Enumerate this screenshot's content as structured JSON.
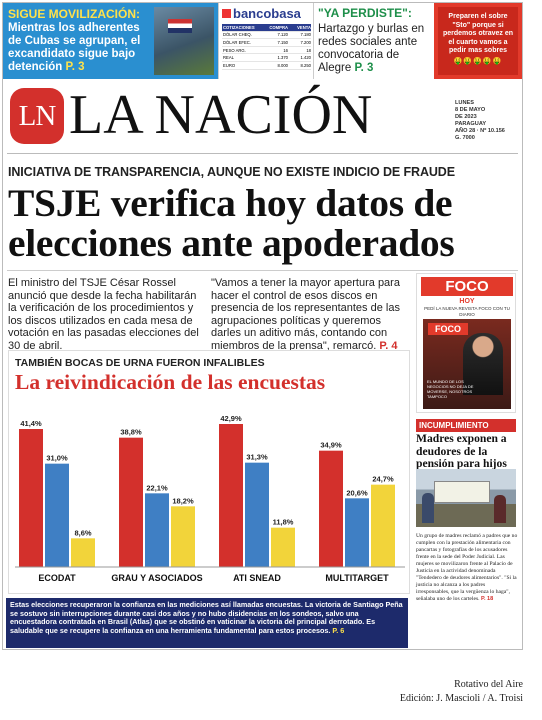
{
  "teasers": {
    "movilizacion": {
      "kicker": "SIGUE MOVILIZACIÓN:",
      "text": "Mientras los adherentes de Cubas se agrupan, el excandidato sigue bajo detención",
      "page_ref": "P. 3"
    },
    "bancobasa": {
      "logo": "bancobasa",
      "headers": [
        "COTIZACIONES",
        "COMPRA",
        "VENTA"
      ],
      "rows": [
        [
          "DÓLAR CHEQ.",
          "7.120",
          "7.180"
        ],
        [
          "DÓLAR EFEC.",
          "7.150",
          "7.200"
        ],
        [
          "PESO ARG.",
          "16",
          "18"
        ],
        [
          "REAL",
          "1.370",
          "1.420"
        ],
        [
          "EURO",
          "8.000",
          "8.250"
        ]
      ]
    },
    "perdiste": {
      "kicker": "\"YA PERDISTE\":",
      "text": "Hartazgo y burlas en redes sociales ante convocatoria de Alegre",
      "page_ref": "P. 3"
    },
    "social": {
      "text": "Preparen el sobre \"Sto\" porque si perdemos otravez en el cuarto vamos a pedir mas sobres",
      "emoji": "🤑🤑🤑🤑🤑"
    }
  },
  "masthead": {
    "logo": "LN",
    "brand": "LA NACIÓN",
    "date_lines": [
      "LUNES",
      "8 DE MAYO",
      "DE 2023",
      "PARAGUAY",
      "AÑO 28 · Nº 10.156",
      "G. 7000"
    ]
  },
  "main": {
    "kicker": "INICIATIVA DE TRANSPARENCIA, AUNQUE NO EXISTE INDICIO DE FRAUDE",
    "headline": "TSJE verifica hoy datos de elecciones ante apoderados",
    "lede_left": "El ministro del TSJE César Rossel anunció que desde la fecha habilitarán la verificación de los procedimientos y los discos utilizados en cada mesa de votación en las pasadas elecciones del 30 de abril.",
    "lede_right": "\"Vamos a tener la mayor apertura para hacer el control de esos discos en presencia de los representantes de las agrupaciones políticas y queremos darles un aditivo más, contando con miembros de la prensa\", remarcó.",
    "lede_right_ref": "P. 4"
  },
  "chart_data": {
    "type": "bar",
    "kicker": "TAMBIÉN BOCAS DE URNA FUERON INFALIBLES",
    "title": "La reivindicación de las encuestas",
    "categories": [
      "ECODAT",
      "GRAU Y ASOCIADOS",
      "ATI SNEAD",
      "MULTITARGET"
    ],
    "series": [
      {
        "color": "#d3302c",
        "values": [
          41.4,
          38.8,
          42.9,
          34.9
        ]
      },
      {
        "color": "#3f7fc4",
        "values": [
          31.0,
          22.1,
          31.3,
          20.6
        ]
      },
      {
        "color": "#f2d43a",
        "values": [
          8.6,
          18.2,
          11.8,
          24.7
        ]
      }
    ],
    "value_labels": [
      [
        "41,4%",
        "38,8%",
        "42,9%",
        "34,9%"
      ],
      [
        "31,0%",
        "22,1%",
        "31,3%",
        "20,6%"
      ],
      [
        "8,6%",
        "18,2%",
        "11,8%",
        "24,7%"
      ]
    ],
    "ylim": [
      0,
      45
    ]
  },
  "chart_footer": {
    "text": "Estas elecciones recuperaron la confianza en las mediciones así llamadas encuestas. La victoria de Santiago Peña se sostuvo sin interrupciones durante casi dos años y no hubo disidencias en los sondeos, salvo una encuestadora contratada en Brasil (Atlas) que se obstinó en vaticinar la victoria del principal derrotado. Es saludable que se recupere la confianza en una herramienta fundamental para estos procesos.",
    "page_ref": "P. 6"
  },
  "foco": {
    "logo": "FOCO",
    "hoy": "HOY",
    "sub": "PEDÍ LA NUEVA REVISTA FOCO CON TU DIARIO",
    "cover_logo": "FOCO",
    "cover_caption": "EL MUNDO DE LOS NEGOCIOS NO DEJA DE MOVERSE, NOSOTROS TAMPOCO"
  },
  "incumplimiento": {
    "kicker": "INCUMPLIMIENTO",
    "headline": "Madres exponen a deudores de la pensión para hijos",
    "body": "Un grupo de madres reclamó a padres que no cumplen con la prestación alimentaria con pancartas y fotografías de los acusadores frente en la sede del Poder Judicial. Las mujeres se movilizaron frente al Palacio de Justicia en la actividad denominada \"Tendedero de deudores alimentarios\". \"Si la justicia no alcanza a los padres irresponsables, que la vergüenza lo haga\", señalaba uno de los carteles.",
    "page_ref": "P. 18"
  },
  "credits": {
    "line1": "Rotativo del Aire",
    "line2": "Edición: J. Mascioli / A. Troisi"
  }
}
